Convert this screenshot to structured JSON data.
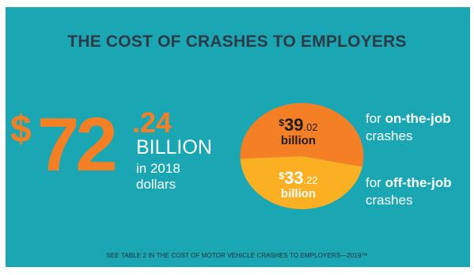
{
  "title": "THE COST OF CRASHES TO EMPLOYERS",
  "total": {
    "dollar_sign": "$",
    "whole": "72",
    "cents": ".24",
    "unit": "BILLION",
    "note_line1": "in 2018",
    "note_line2": "dollars"
  },
  "colors": {
    "background": "#1aa7b3",
    "on_the_job": "#f47f25",
    "off_the_job": "#fbb024",
    "title": "#2e3a45"
  },
  "chart_data": {
    "type": "pie",
    "unit": "billion",
    "slices": [
      {
        "label": "on-the-job",
        "value": 39.02,
        "display_dollar": "$",
        "display_whole": "39",
        "display_cents": ".02",
        "display_unit": "billion",
        "desc_prefix": "for ",
        "desc_bold": "on-the-job",
        "desc_suffix": "crashes"
      },
      {
        "label": "off-the-job",
        "value": 33.22,
        "display_dollar": "$",
        "display_whole": "33",
        "display_cents": ".22",
        "display_unit": "billion",
        "desc_prefix": "for ",
        "desc_bold": "off-the-job",
        "desc_suffix": "crashes"
      }
    ]
  },
  "footnote": "SEE TABLE 2 IN THE COST OF MOTOR VEHICLE CRASHES TO EMPLOYERS—2019™"
}
